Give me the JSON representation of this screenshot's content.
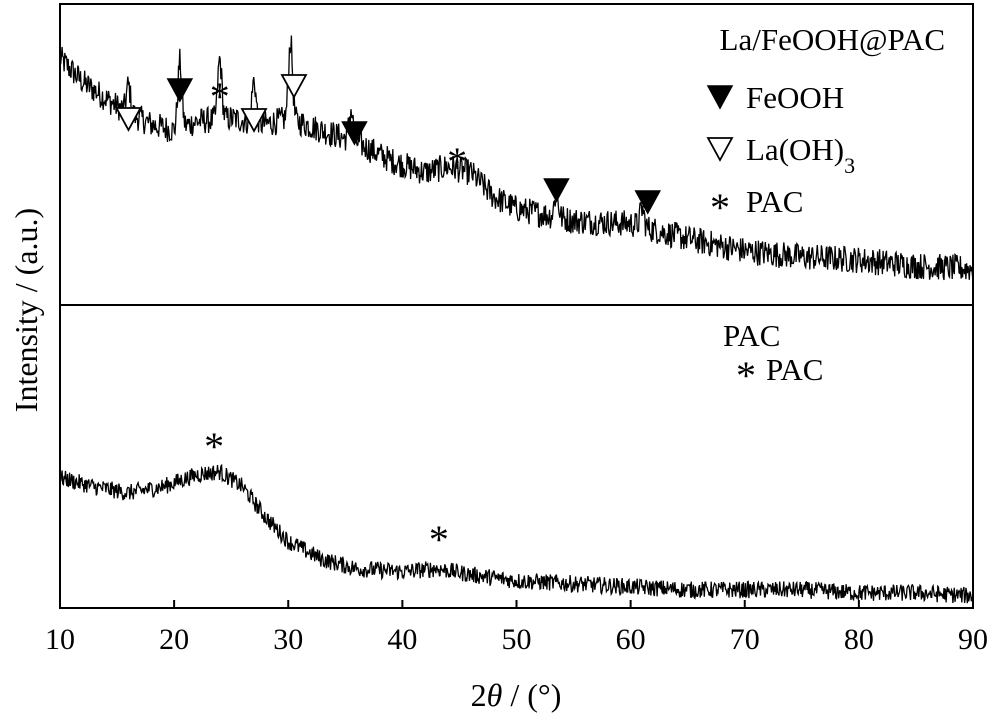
{
  "chart_data": {
    "type": "line",
    "xlabel_prefix": "2",
    "xlabel_var": "θ",
    "xlabel_suffix": " / (°)",
    "ylabel": "Intensity / (a.u.)",
    "xlim": [
      10,
      90
    ],
    "xticks": [
      10,
      20,
      30,
      40,
      50,
      60,
      70,
      80,
      90
    ],
    "grid": false,
    "panels": [
      {
        "title": "La/FeOOH@PAC",
        "series": {
          "baseline": [
            [
              10,
              0.82
            ],
            [
              12,
              0.74
            ],
            [
              15,
              0.66
            ],
            [
              18,
              0.6
            ],
            [
              20,
              0.58
            ],
            [
              22,
              0.61
            ],
            [
              25,
              0.62
            ],
            [
              28,
              0.6
            ],
            [
              30,
              0.62
            ],
            [
              33,
              0.58
            ],
            [
              36,
              0.54
            ],
            [
              39,
              0.48
            ],
            [
              42,
              0.44
            ],
            [
              44,
              0.46
            ],
            [
              46,
              0.44
            ],
            [
              48,
              0.36
            ],
            [
              50,
              0.32
            ],
            [
              55,
              0.28
            ],
            [
              60,
              0.27
            ],
            [
              65,
              0.22
            ],
            [
              70,
              0.18
            ],
            [
              75,
              0.16
            ],
            [
              80,
              0.15
            ],
            [
              85,
              0.13
            ],
            [
              90,
              0.12
            ]
          ],
          "peaks": [
            [
              16,
              0.09
            ],
            [
              20.5,
              0.22
            ],
            [
              24,
              0.2
            ],
            [
              27,
              0.14
            ],
            [
              30.2,
              0.26
            ],
            [
              35.5,
              0.1
            ],
            [
              53.5,
              0.08
            ],
            [
              61,
              0.06
            ]
          ],
          "noise": 0.045
        },
        "annotations": [
          {
            "x": 16.0,
            "marker": "open-triangle"
          },
          {
            "x": 20.5,
            "marker": "filled-triangle"
          },
          {
            "x": 24.0,
            "marker": "star"
          },
          {
            "x": 27.0,
            "marker": "open-triangle"
          },
          {
            "x": 30.5,
            "marker": "open-triangle"
          },
          {
            "x": 35.8,
            "marker": "filled-triangle"
          },
          {
            "x": 44.8,
            "marker": "star"
          },
          {
            "x": 53.5,
            "marker": "filled-triangle"
          },
          {
            "x": 61.5,
            "marker": "filled-triangle"
          }
        ],
        "legend": [
          {
            "marker": "filled-triangle",
            "label": "FeOOH"
          },
          {
            "marker": "open-triangle",
            "label": "La(OH)",
            "subscript": "3"
          },
          {
            "marker": "star",
            "label": "PAC"
          }
        ]
      },
      {
        "title": "PAC",
        "series": {
          "baseline": [
            [
              10,
              0.43
            ],
            [
              13,
              0.4
            ],
            [
              16,
              0.38
            ],
            [
              19,
              0.4
            ],
            [
              22,
              0.44
            ],
            [
              24,
              0.45
            ],
            [
              26,
              0.4
            ],
            [
              28,
              0.3
            ],
            [
              30,
              0.22
            ],
            [
              33,
              0.16
            ],
            [
              36,
              0.13
            ],
            [
              40,
              0.12
            ],
            [
              43,
              0.13
            ],
            [
              46,
              0.11
            ],
            [
              50,
              0.09
            ],
            [
              55,
              0.08
            ],
            [
              60,
              0.07
            ],
            [
              65,
              0.06
            ],
            [
              70,
              0.06
            ],
            [
              75,
              0.06
            ],
            [
              80,
              0.05
            ],
            [
              85,
              0.05
            ],
            [
              90,
              0.04
            ]
          ],
          "peaks": [],
          "noise": 0.028
        },
        "annotations": [
          {
            "x": 23.5,
            "marker": "star"
          },
          {
            "x": 43.2,
            "marker": "star"
          }
        ],
        "legend": [
          {
            "marker": "star",
            "label": "PAC"
          }
        ]
      }
    ]
  },
  "symbols": {
    "star": "*"
  }
}
